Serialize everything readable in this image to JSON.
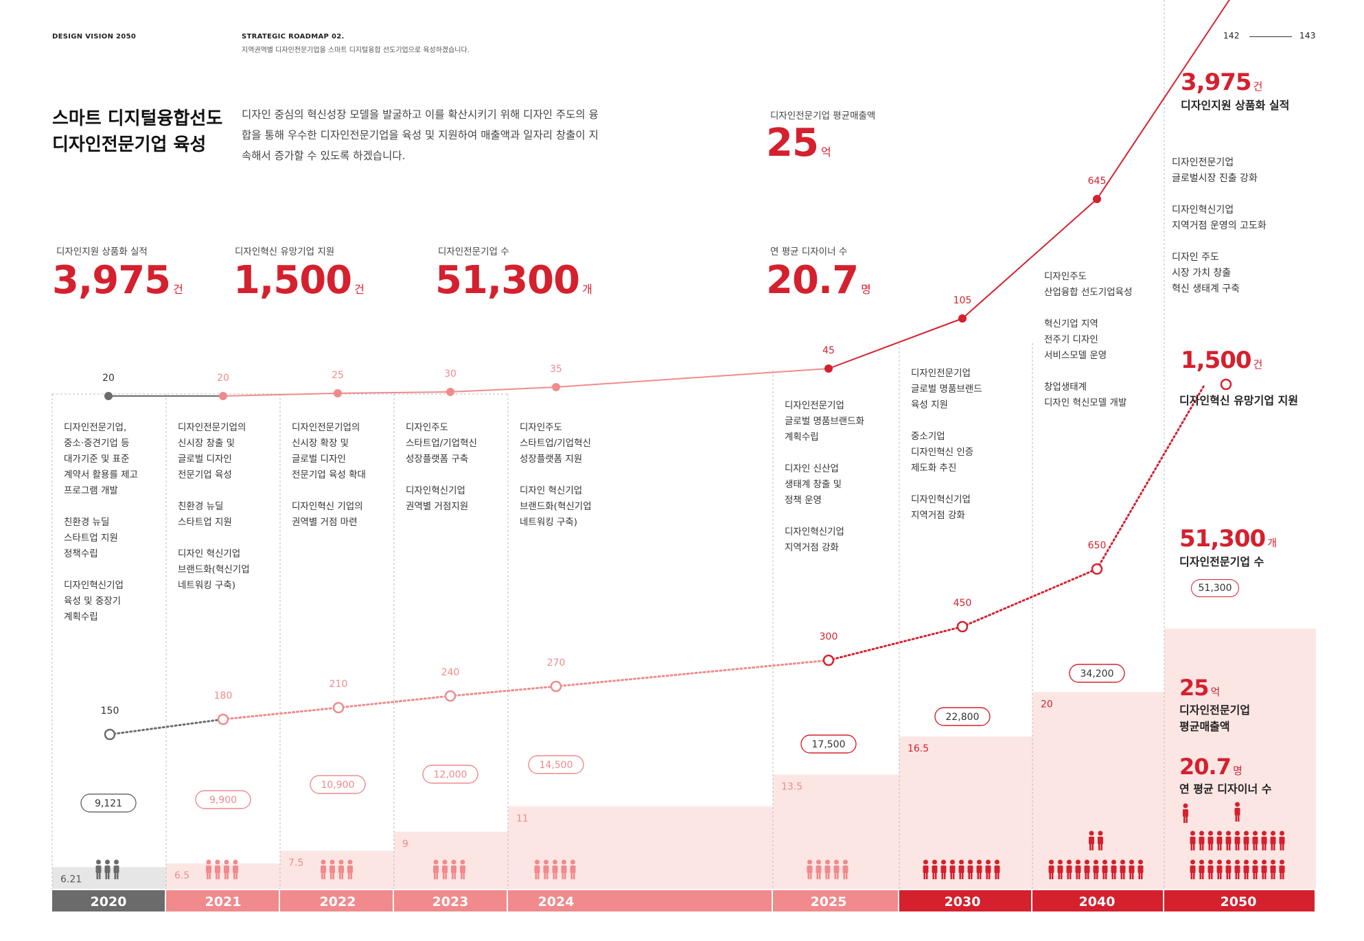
{
  "header": {
    "left": "DESIGN VISION 2050",
    "roadmap_title": "STRATEGIC ROADMAP  02.",
    "roadmap_sub": "지역권역별 디자인전문기업을 스마트 디지털융합 선도기업으로 육성하겠습니다.",
    "page_left": "142",
    "page_right": "143"
  },
  "title": {
    "line1": "스마트 디지털융합선도",
    "line2": "디자인전문기업 육성"
  },
  "intro": "디자인 중심의 혁신성장 모델을 발굴하고 이를 확산시키기 위해 디자인 주도의 융합을 통해 우수한 디자인전문기업을 육성 및 지원하여 매출액과 일자리 창출이 지속해서 증가할 수 있도록 하겠습니다.",
  "stats": [
    {
      "label": "디자인지원 상품화 실적",
      "value": "3,975",
      "unit": "건"
    },
    {
      "label": "디자인혁신 유망기업 지원",
      "value": "1,500",
      "unit": "건"
    },
    {
      "label": "디자인전문기업 수",
      "value": "51,300",
      "unit": "개"
    },
    {
      "label": "연 평균 디자이너 수",
      "value": "20.7",
      "unit": "명"
    },
    {
      "label": "디자인전문기업 평균매출액",
      "value": "25",
      "unit": "억"
    }
  ],
  "chart_data": {
    "type": "line",
    "categories": [
      "2020",
      "2021",
      "2022",
      "2023",
      "2024",
      "2025",
      "2030",
      "2040",
      "2050"
    ],
    "series": [
      {
        "name": "디자인지원 상품화 실적",
        "values": [
          20,
          20,
          25,
          30,
          35,
          45,
          105,
          645,
          3975
        ]
      },
      {
        "name": "디자인혁신 유망기업 지원",
        "values": [
          150,
          180,
          210,
          240,
          270,
          300,
          450,
          650,
          1500
        ]
      },
      {
        "name": "디자인전문기업 수",
        "values": [
          9121,
          9900,
          10900,
          12000,
          14500,
          17500,
          22800,
          34200,
          51300
        ]
      },
      {
        "name": "디자인전문기업 평균매출액",
        "values": [
          6.21,
          6.5,
          7.5,
          9,
          11,
          13.5,
          16.5,
          20,
          25
        ]
      },
      {
        "name": "연 평균 디자이너 수",
        "values": [
          3,
          3.5,
          4,
          4.5,
          5.5,
          5.5,
          9,
          13,
          20.7
        ]
      }
    ],
    "top_labels": [
      "20",
      "20",
      "25",
      "30",
      "35",
      "45",
      "105",
      "645"
    ],
    "mid_labels": [
      "150",
      "180",
      "210",
      "240",
      "270",
      "300",
      "450",
      "650"
    ],
    "company_labels": [
      "9,121",
      "9,900",
      "10,900",
      "12,000",
      "14,500",
      "17,500",
      "22,800",
      "34,200"
    ],
    "revenue_labels": [
      "6.21",
      "6.5",
      "7.5",
      "9",
      "11",
      "13.5",
      "16.5",
      "20"
    ]
  },
  "columns": [
    {
      "year": "2020",
      "desc": "디자인전문기업,\n중소·중견기업 등\n대가기준 및 표준\n계약서 활용를 제고\n프로그램 개발\n\n친환경 뉴딜\n스타트업 지원\n정책수립\n\n디자인혁신기업\n육성 및 중장기\n계획수립"
    },
    {
      "year": "2021",
      "desc": "디자인전문기업의\n신시장 창출 및\n글로벌 디자인\n전문기업 육성\n\n친환경 뉴딜\n스타트업 지원\n\n디자인 혁신기업\n브랜드화(혁신기업\n네트워킹 구축)"
    },
    {
      "year": "2022",
      "desc": "디자인전문기업의\n신시장  확장 및\n글로벌 디자인\n전문기업 육성 확대\n\n디자인혁신 기업의\n권역별 거점 마련"
    },
    {
      "year": "2023",
      "desc": "디자인주도\n스타트업/기업혁신\n성장플랫폼 구축\n\n디자인혁신기업\n권역별 거점지원"
    },
    {
      "year": "2024",
      "desc": "디자인주도\n스타트업/기업혁신\n성장플랫폼 지원\n\n디자인 혁신기업\n브랜드화(혁신기업\n네트워킹 구축)"
    },
    {
      "year": "2025",
      "desc": "디자인전문기업\n글로벌 명품브랜드화\n계획수립\n\n디자인 신산업\n생태계 창출 및\n정책 운영\n\n디자인혁신기업\n지역거점 강화"
    },
    {
      "year": "2030",
      "desc": "디자인전문기업\n글로벌 명품브랜드\n육성 지원\n\n중소기업\n디자인혁신 인증\n제도화 추진\n\n디자인혁신기업\n지역거점 강화"
    },
    {
      "year": "2040",
      "desc": "디자인주도\n산업융합 선도기업육성\n\n혁신기업 지역\n전주기 디자인\n서비스모델 운영\n\n창업생태계\n디자인 혁신모델 개발"
    },
    {
      "year": "2050",
      "desc": "디자인전문기업\n글로벌시장 진출 강화\n\n디자인혁신기업\n지역거점 운영의 고도화\n\n디자인 주도\n시장 가치 창출\n혁신 생태계 구축"
    }
  ],
  "side": {
    "s1_value": "3,975",
    "s1_unit": "건",
    "s1_cap": "디자인지원 상품화 실적",
    "s2_value": "1,500",
    "s2_unit": "건",
    "s2_cap": "디자인혁신 유망기업 지원",
    "s3_value": "51,300",
    "s3_unit": "개",
    "s3_cap": "디자인전문기업 수",
    "s3_pill": "51,300",
    "s4_value": "25",
    "s4_unit": "억",
    "s4_cap1": "디자인전문기업",
    "s4_cap2": "평균매출액",
    "s5_value": "20.7",
    "s5_unit": "명",
    "s5_cap": "연 평균 디자이너 수"
  },
  "colors": {
    "red": "#d5202e",
    "pink": "#f08a8c",
    "lightpink": "#fce6e4",
    "gray": "#6b6b6b",
    "lightgray": "#e6e6e6"
  }
}
